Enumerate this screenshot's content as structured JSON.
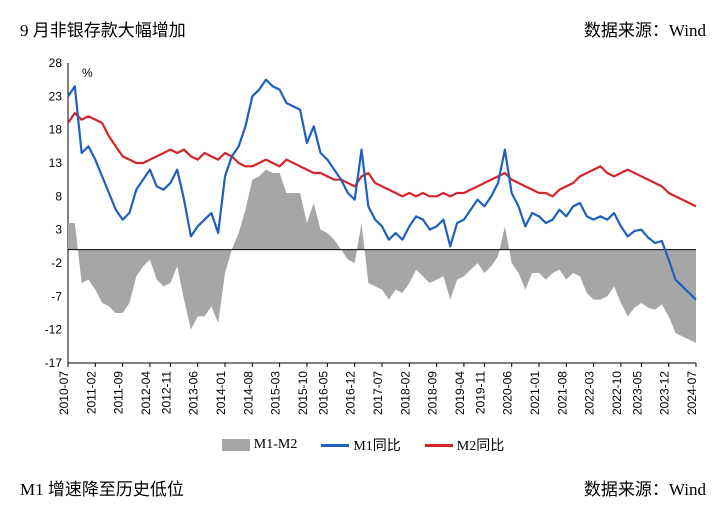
{
  "header": {
    "title_left": "9 月非银存款大幅增加",
    "source": "数据来源：Wind"
  },
  "footer": {
    "title_left": "M1 增速降至历史低位",
    "source": "数据来源：Wind"
  },
  "chart": {
    "type": "line+area",
    "y_unit_label": "%",
    "ylim": [
      -17,
      28
    ],
    "yticks": [
      -17,
      -12,
      -7,
      -2,
      3,
      8,
      13,
      18,
      23,
      28
    ],
    "x_categories": [
      "2010-07",
      "2011-02",
      "2011-09",
      "2012-04",
      "2012-11",
      "2013-06",
      "2014-01",
      "2014-08",
      "2015-03",
      "2015-10",
      "2016-05",
      "2016-12",
      "2017-07",
      "2018-02",
      "2018-09",
      "2019-04",
      "2019-11",
      "2020-06",
      "2021-01",
      "2021-08",
      "2022-03",
      "2022-10",
      "2023-05",
      "2023-12",
      "2024-07"
    ],
    "colors": {
      "m1": "#1f5fbf",
      "m2": "#d4262a",
      "area": "#a6a6a6",
      "axis": "#000000",
      "bg": "#ffffff"
    },
    "line_width": 2.2,
    "legend": {
      "area": "M1-M2",
      "m1": "M1同比",
      "m2": "M2同比"
    },
    "series": {
      "m1": [
        23.0,
        24.5,
        14.5,
        15.5,
        13.5,
        11.0,
        8.5,
        6.0,
        4.5,
        5.5,
        9.0,
        10.5,
        12.0,
        9.5,
        9.0,
        10.0,
        12.0,
        7.5,
        2.0,
        3.5,
        4.5,
        5.5,
        2.5,
        11.0,
        14.0,
        15.5,
        18.5,
        23.0,
        24.0,
        25.5,
        24.5,
        24.0,
        22.0,
        21.5,
        21.0,
        16.0,
        18.5,
        14.5,
        13.5,
        12.0,
        10.5,
        8.5,
        7.5,
        15.0,
        6.5,
        4.5,
        3.5,
        1.5,
        2.5,
        1.5,
        3.5,
        5.0,
        4.5,
        3.0,
        3.5,
        4.5,
        0.5,
        4.0,
        4.5,
        6.0,
        7.5,
        6.5,
        8.0,
        10.0,
        15.0,
        8.5,
        6.5,
        3.5,
        5.5,
        5.0,
        4.0,
        4.5,
        6.0,
        5.0,
        6.5,
        7.0,
        5.0,
        4.5,
        5.0,
        4.5,
        5.5,
        3.5,
        2.0,
        2.8,
        3.0,
        1.8,
        1.0,
        1.3,
        -1.5,
        -4.5,
        -5.5,
        -6.5,
        -7.5
      ],
      "m2": [
        19.0,
        20.5,
        19.5,
        20.0,
        19.5,
        19.0,
        17.0,
        15.5,
        14.0,
        13.5,
        13.0,
        13.0,
        13.5,
        14.0,
        14.5,
        15.0,
        14.5,
        15.0,
        14.0,
        13.5,
        14.5,
        14.0,
        13.5,
        14.5,
        14.0,
        13.0,
        12.5,
        12.5,
        13.0,
        13.5,
        13.0,
        12.5,
        13.5,
        13.0,
        12.5,
        12.0,
        11.5,
        11.5,
        11.0,
        10.5,
        10.5,
        10.0,
        9.5,
        11.0,
        11.5,
        10.0,
        9.5,
        9.0,
        8.5,
        8.0,
        8.5,
        8.0,
        8.5,
        8.0,
        8.0,
        8.5,
        8.0,
        8.5,
        8.5,
        9.0,
        9.5,
        10.0,
        10.5,
        11.0,
        11.5,
        10.5,
        10.0,
        9.5,
        9.0,
        8.5,
        8.5,
        8.0,
        9.0,
        9.5,
        10.0,
        11.0,
        11.5,
        12.0,
        12.5,
        11.5,
        11.0,
        11.5,
        12.0,
        11.5,
        11.0,
        10.5,
        10.0,
        9.5,
        8.5,
        8.0,
        7.5,
        7.0,
        6.5
      ]
    }
  }
}
